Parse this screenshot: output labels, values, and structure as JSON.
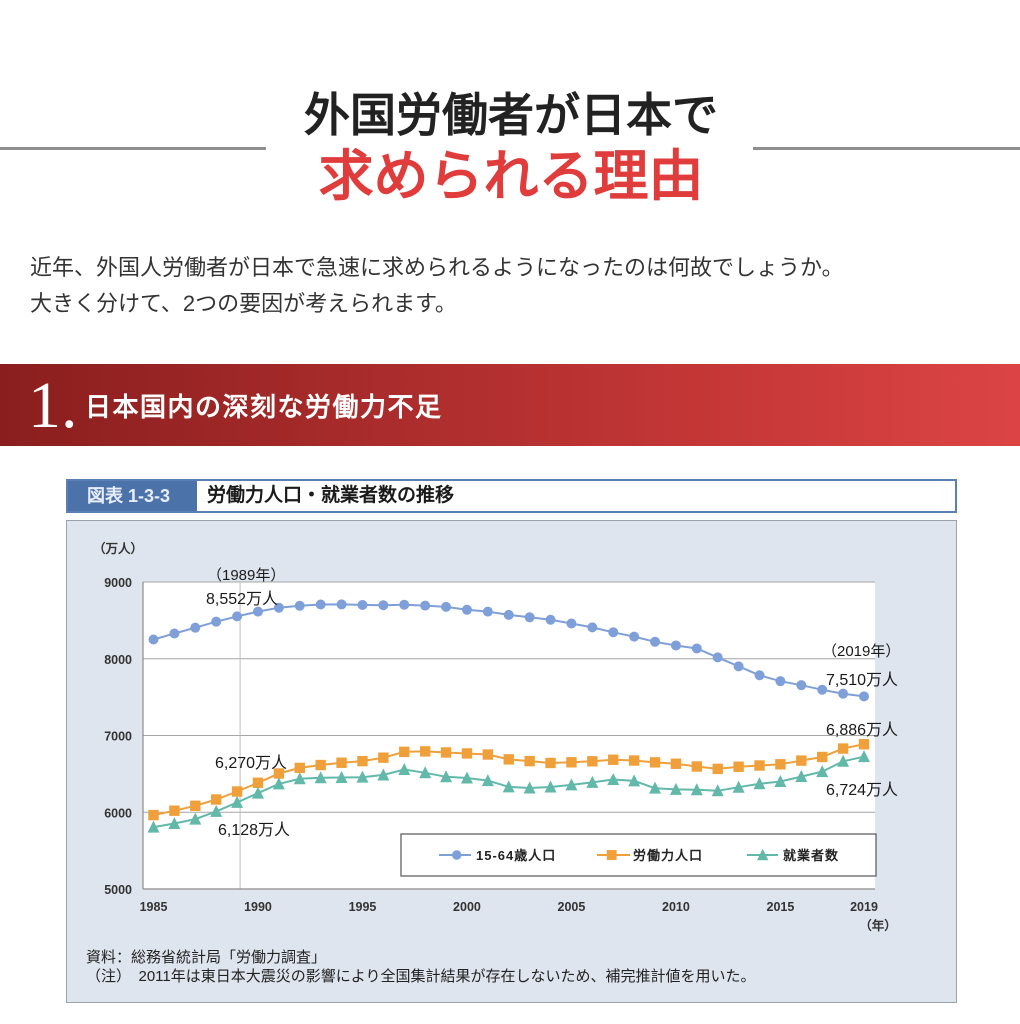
{
  "page": {
    "title_line1": "外国労働者が日本で",
    "title_line2": "求められる理由",
    "intro": [
      "近年、外国人労働者が日本で急速に求められるようになったのは何故でしょうか。",
      "大きく分けて、2つの要因が考えられます。"
    ],
    "accent_color": "#e03c3c"
  },
  "section": {
    "number": "1.",
    "title": "日本国内の深刻な労働力不足"
  },
  "figure": {
    "label": "図表 1-3-3",
    "title": "労働力人口・就業者数の推移",
    "source": "資料：総務省統計局「労働力調査」",
    "note": "（注）　2011年は東日本大震災の影響により全国集計結果が存在しないため、補完推計値を用いた。"
  },
  "chart_data": {
    "type": "line",
    "title": "労働力人口・就業者数の推移",
    "ylabel": "（万人）",
    "xlabel": "（年）",
    "ylim": [
      5000,
      9000
    ],
    "yticks": [
      "9000",
      "8000",
      "7000",
      "6000",
      "5000"
    ],
    "xticks": [
      "1985",
      "1990",
      "1995",
      "2000",
      "2005",
      "2010",
      "2015",
      "2019"
    ],
    "grid": true,
    "legend_position": "bottom-right",
    "marker_year": 1989,
    "x": [
      1985,
      1986,
      1987,
      1988,
      1989,
      1990,
      1991,
      1992,
      1993,
      1994,
      1995,
      1996,
      1997,
      1998,
      1999,
      2000,
      2001,
      2002,
      2003,
      2004,
      2005,
      2006,
      2007,
      2008,
      2009,
      2010,
      2011,
      2012,
      2013,
      2014,
      2015,
      2016,
      2017,
      2018,
      2019
    ],
    "series": [
      {
        "key": "pop15-64",
        "name": "15-64歳人口",
        "color": "#7f9fd9",
        "marker": "circle",
        "values": [
          8251,
          8329,
          8405,
          8483,
          8552,
          8614,
          8665,
          8690,
          8707,
          8708,
          8701,
          8697,
          8704,
          8692,
          8676,
          8638,
          8614,
          8571,
          8540,
          8508,
          8459,
          8409,
          8345,
          8288,
          8221,
          8173,
          8134,
          8018,
          7901,
          7785,
          7708,
          7656,
          7596,
          7545,
          7510
        ]
      },
      {
        "key": "labor-force",
        "name": "労働力人口",
        "color": "#f0a03a",
        "marker": "square",
        "values": [
          5963,
          6020,
          6084,
          6166,
          6270,
          6384,
          6505,
          6578,
          6615,
          6645,
          6666,
          6711,
          6787,
          6793,
          6779,
          6766,
          6752,
          6689,
          6666,
          6642,
          6651,
          6664,
          6684,
          6674,
          6650,
          6632,
          6596,
          6565,
          6593,
          6609,
          6625,
          6673,
          6720,
          6830,
          6886
        ]
      },
      {
        "key": "employed",
        "name": "就業者数",
        "color": "#62b9aa",
        "marker": "triangle",
        "values": [
          5807,
          5853,
          5911,
          6011,
          6128,
          6249,
          6369,
          6436,
          6450,
          6453,
          6457,
          6486,
          6557,
          6514,
          6462,
          6446,
          6412,
          6330,
          6316,
          6329,
          6356,
          6389,
          6427,
          6409,
          6314,
          6298,
          6293,
          6280,
          6326,
          6371,
          6401,
          6465,
          6530,
          6664,
          6724
        ]
      }
    ],
    "annotations": {
      "year_1989": "（1989年）",
      "pop_1989": "8,552万人",
      "labor_1989": "6,270万人",
      "employed_1989": "6,128万人",
      "year_2019": "（2019年）",
      "pop_2019": "7,510万人",
      "labor_2019": "6,886万人",
      "employed_2019": "6,724万人"
    }
  }
}
